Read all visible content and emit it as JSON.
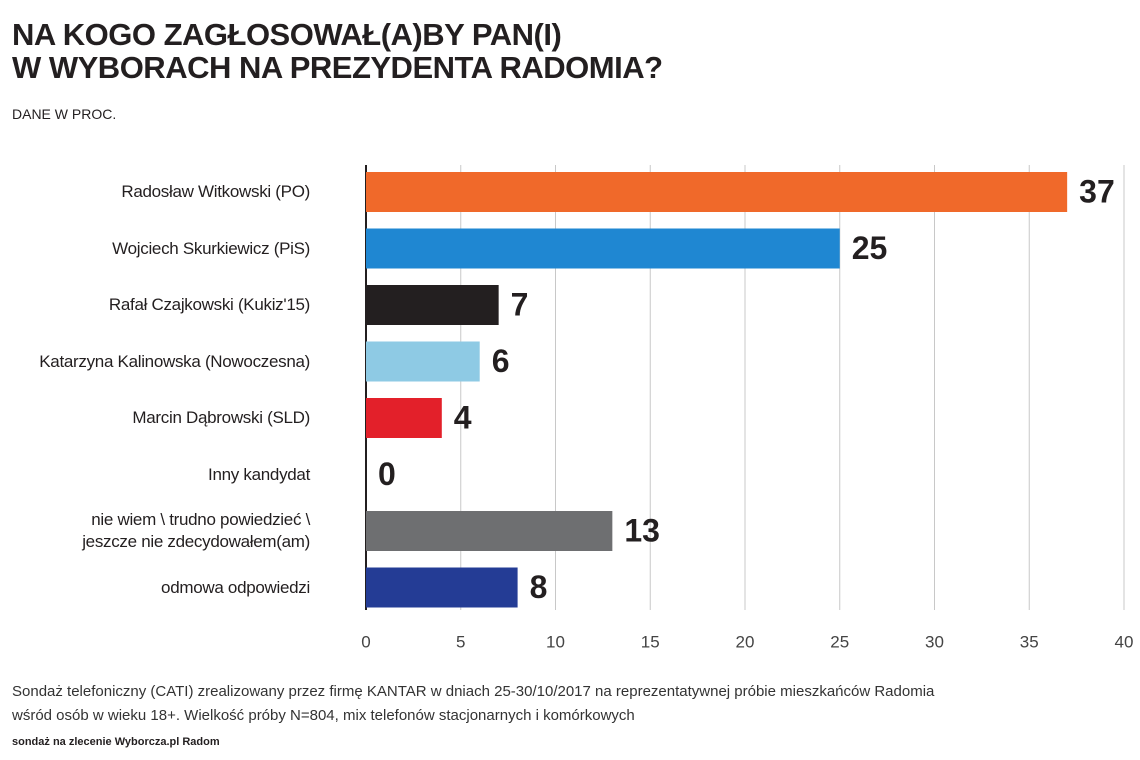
{
  "chart_data": {
    "type": "hbar",
    "title": "NA KOGO ZAGŁOSOWAŁ(A)BY PAN(I)\nW WYBORACH NA PREZYDENTA RADOMIA?",
    "subtitle": "DANE W PROC.",
    "categories": [
      "Radosław Witkowski (PO)",
      "Wojciech Skurkiewicz (PiS)",
      "Rafał Czajkowski (Kukiz'15)",
      "Katarzyna Kalinowska (Nowoczesna)",
      "Marcin Dąbrowski (SLD)",
      "Inny kandydat",
      "nie wiem \\ trudno powiedzieć \\\njeszcze nie zdecydowałem(am)",
      "odmowa odpowiedzi"
    ],
    "values": [
      37,
      25,
      7,
      6,
      4,
      0,
      13,
      8
    ],
    "colors": [
      "#f0692a",
      "#1f87d2",
      "#231f20",
      "#8ecae4",
      "#e3202a",
      "#888888",
      "#6e6f71",
      "#243c95"
    ],
    "xlim": [
      0,
      40
    ],
    "xticks": [
      0,
      5,
      10,
      15,
      20,
      25,
      30,
      35,
      40
    ],
    "grid": true,
    "note": "Sondaż telefoniczny (CATI) zrealizowany przez firmę KANTAR w dniach 25-30/10/2017 na reprezentatywnej próbie mieszkańców Radomia\nwśród osób w wieku 18+. Wielkość próby N=804, mix telefonów stacjonarnych i komórkowych",
    "source": "sondaż na zlecenie Wyborcza.pl Radom"
  }
}
